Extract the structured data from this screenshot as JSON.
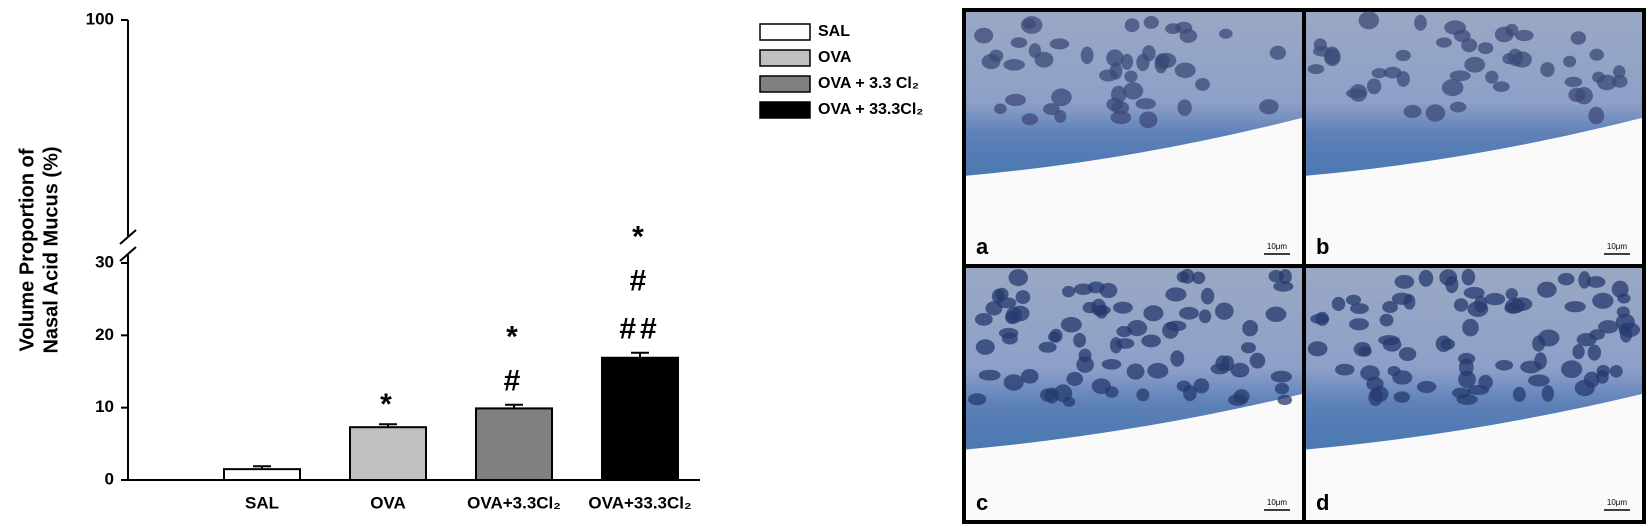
{
  "chart_data": {
    "type": "bar",
    "ylabel": [
      "Volume Proportion of",
      "Nasal Acid Mucus (%)"
    ],
    "categories": [
      "SAL",
      "OVA",
      "OVA+3.3Cl₂",
      "OVA+33.3Cl₂"
    ],
    "values": [
      1.5,
      7.3,
      9.9,
      16.9
    ],
    "errors": [
      0.4,
      0.4,
      0.5,
      0.7
    ],
    "colors": [
      "#ffffff",
      "#c0c0c0",
      "#808080",
      "#000000"
    ],
    "ylim": [
      0,
      100
    ],
    "ybreak": 30,
    "yticks": [
      0,
      10,
      20,
      30,
      100
    ],
    "annotations": [
      {
        "category": 1,
        "lines": [
          "*"
        ]
      },
      {
        "category": 2,
        "lines": [
          "*",
          "#"
        ]
      },
      {
        "category": 3,
        "lines": [
          "*",
          "#",
          "##"
        ]
      }
    ],
    "legend": [
      {
        "label": "SAL",
        "color": "#ffffff"
      },
      {
        "label": "OVA",
        "color": "#c0c0c0"
      },
      {
        "label": "OVA + 3.3 Cl₂",
        "color": "#808080"
      },
      {
        "label": "OVA + 33.3Cl₂",
        "color": "#000000"
      }
    ]
  },
  "micrographs": [
    {
      "letter": "a",
      "scale": "10μm"
    },
    {
      "letter": "b",
      "scale": "10μm"
    },
    {
      "letter": "c",
      "scale": "10μm"
    },
    {
      "letter": "d",
      "scale": "10μm"
    }
  ]
}
